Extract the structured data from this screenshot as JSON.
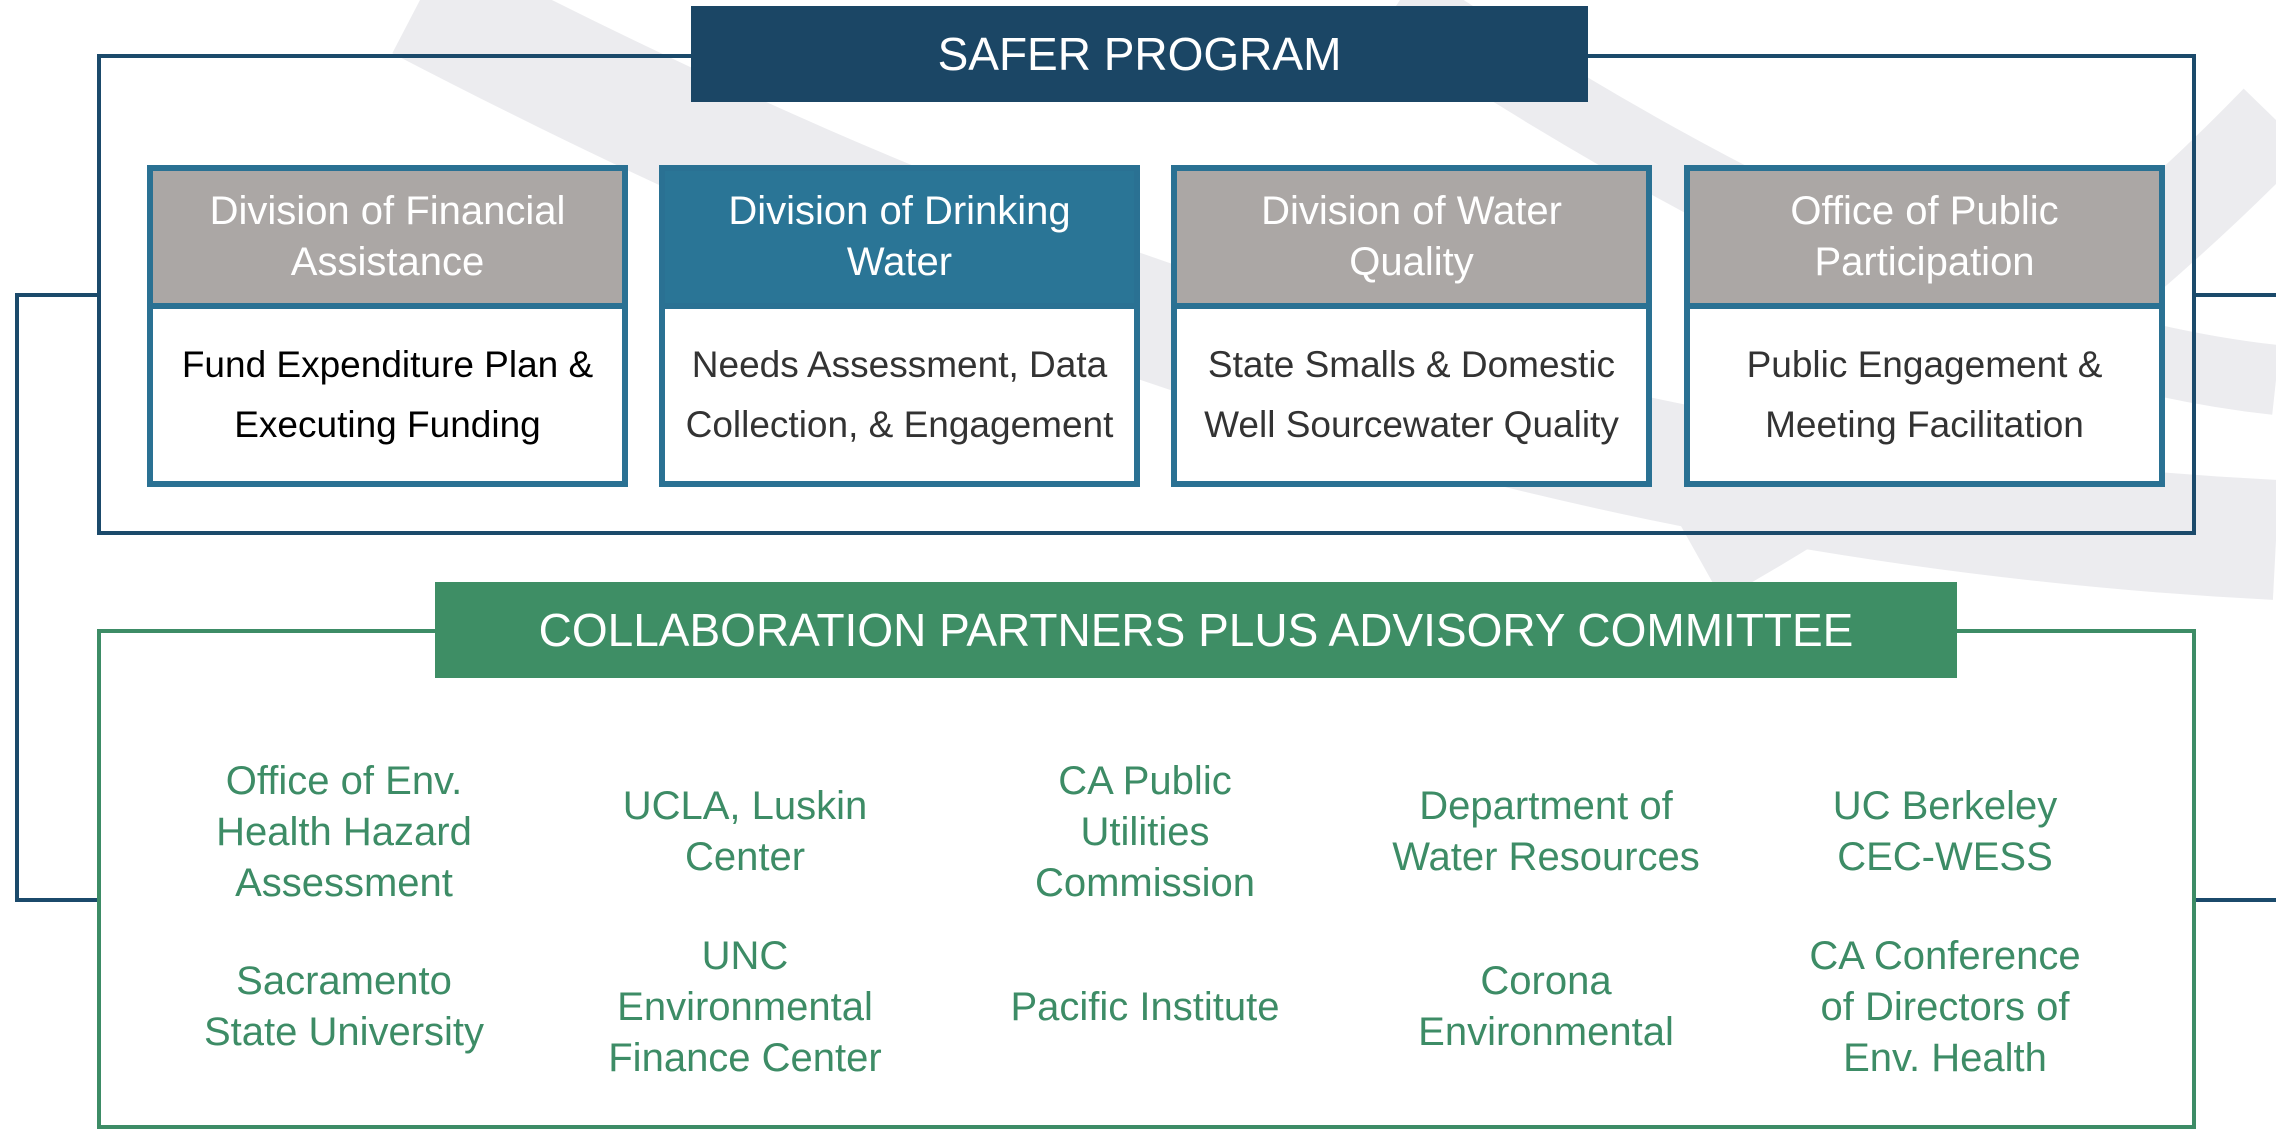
{
  "title": "SAFER PROGRAM",
  "divisions": [
    {
      "title": "Division of Financial Assistance",
      "description": "Fund Expenditure Plan & Executing Funding"
    },
    {
      "title": "Division of Drinking Water",
      "description": "Needs Assessment, Data Collection, & Engagement"
    },
    {
      "title": "Division of Water Quality",
      "description": "State Smalls & Domestic Well Sourcewater Quality"
    },
    {
      "title": "Office of Public Participation",
      "description": "Public Engagement & Meeting Facilitation"
    }
  ],
  "partners_title": "COLLABORATION PARTNERS PLUS ADVISORY COMMITTEE",
  "partners": [
    "Office of Env. Health Hazard Assessment",
    "UCLA, Luskin Center",
    "CA Public Utilities Commission",
    "Department of Water Resources",
    "UC Berkeley CEC-WESS",
    "Sacramento State University",
    "UNC Environmental Finance Center",
    "Pacific Institute",
    "Corona Environmental",
    "CA Conference of Directors of Env. Health"
  ]
}
